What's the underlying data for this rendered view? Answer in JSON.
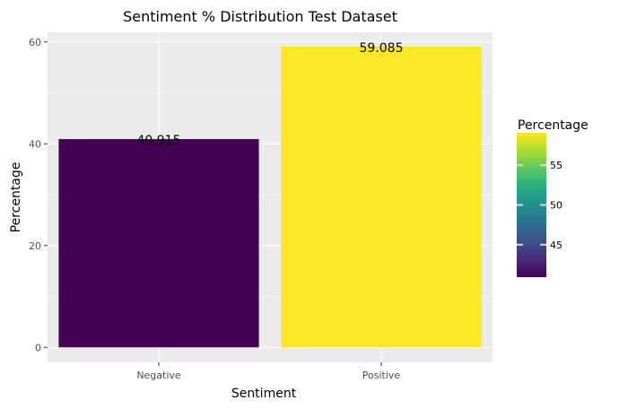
{
  "chart_data": {
    "type": "bar",
    "title": "Sentiment % Distribution Test Dataset",
    "xlabel": "Sentiment",
    "ylabel": "Percentage",
    "categories": [
      "Negative",
      "Positive"
    ],
    "values": [
      40.915,
      59.085
    ],
    "value_labels": [
      "40.915",
      "59.085"
    ],
    "ylim": [
      -2.95,
      61.9
    ],
    "yticks": [
      0,
      20,
      40,
      60
    ],
    "ytick_labels": [
      "0",
      "20",
      "40",
      "60"
    ],
    "grid": true,
    "panel_background": "#ebebeb",
    "bar_colors": [
      "#440154",
      "#fde725"
    ],
    "legend": {
      "title": "Percentage",
      "position": "right",
      "range": [
        40.915,
        59.085
      ],
      "ticks": [
        "45",
        "50",
        "55"
      ],
      "tick_values": [
        45,
        50,
        55
      ],
      "colormap": "viridis"
    }
  }
}
